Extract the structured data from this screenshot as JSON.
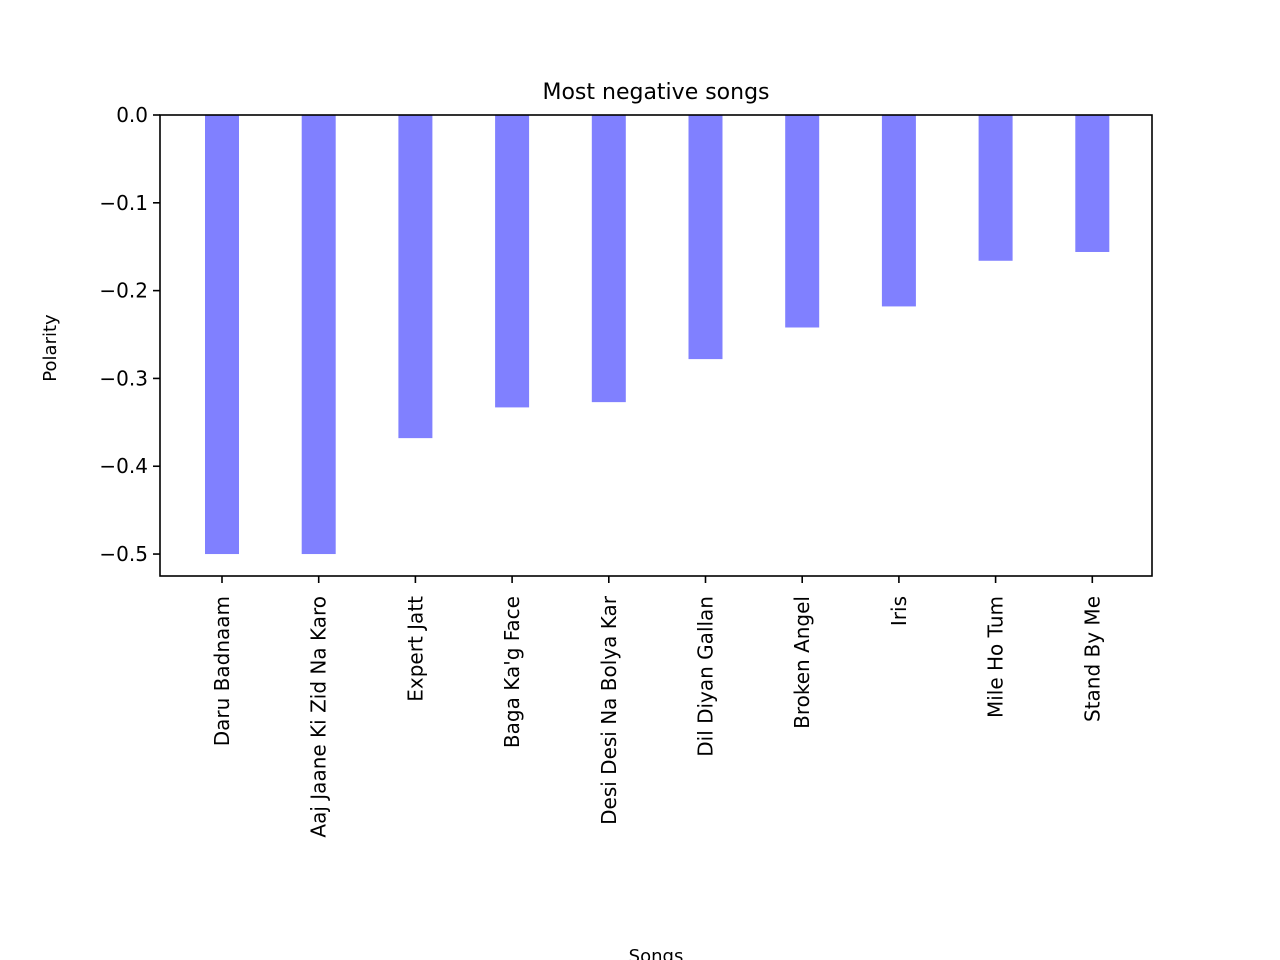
{
  "chart_data": {
    "type": "bar",
    "title": "Most negative songs",
    "xlabel": "Songs",
    "ylabel": "Polarity",
    "categories": [
      "Daru Badnaam",
      "Aaj Jaane Ki Zid Na Karo",
      "Expert Jatt",
      "Baga Ka'g Face",
      "Desi Desi Na Bolya Kar",
      "Dil Diyan Gallan",
      "Broken Angel",
      "Iris",
      "Mile Ho Tum",
      "Stand By Me"
    ],
    "values": [
      -0.5,
      -0.5,
      -0.368,
      -0.333,
      -0.327,
      -0.278,
      -0.242,
      -0.218,
      -0.166,
      -0.156
    ],
    "ylim": [
      -0.525,
      0.0
    ],
    "yticks": [
      0.0,
      -0.1,
      -0.2,
      -0.3,
      -0.4,
      -0.5
    ],
    "ytick_labels": [
      "0.0",
      "−0.1",
      "−0.2",
      "−0.3",
      "−0.4",
      "−0.5"
    ],
    "bar_color": "#8080ff",
    "grid": false,
    "legend": "none"
  }
}
